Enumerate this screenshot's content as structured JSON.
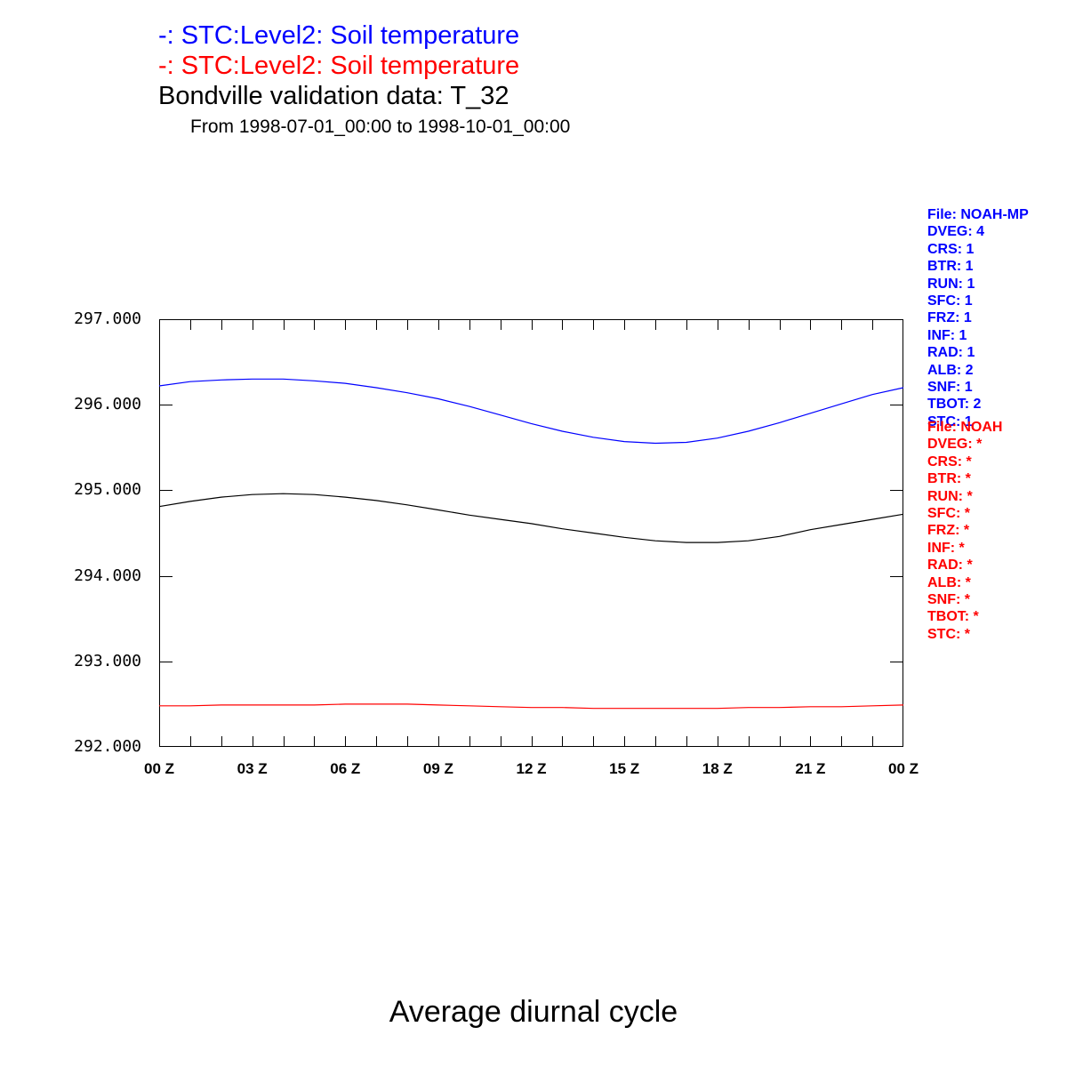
{
  "header": {
    "series_blue_title": "-: STC:Level2: Soil temperature",
    "series_red_title": "-: STC:Level2: Soil temperature",
    "main_title": "Bondville validation data: T_32",
    "subtitle": "From 1998-07-01_00:00 to 1998-10-01_00:00",
    "blue_color": "#0000ff",
    "red_color": "#ff0000"
  },
  "footer": {
    "title": "Average diurnal cycle"
  },
  "legend_noahmp": {
    "color": "#0000ff",
    "lines": [
      "File: NOAH-MP",
      "DVEG: 4",
      "CRS: 1",
      "BTR: 1",
      "RUN: 1",
      "SFC: 1",
      "FRZ: 1",
      "INF: 1",
      "RAD: 1",
      "ALB: 2",
      "SNF: 1",
      "TBOT: 2",
      "STC: 1"
    ]
  },
  "legend_noah": {
    "color": "#ff0000",
    "lines": [
      "File: NOAH",
      "DVEG: *",
      "CRS: *",
      "BTR: *",
      "RUN: *",
      "SFC: *",
      "FRZ: *",
      "INF: *",
      "RAD: *",
      "ALB: *",
      "SNF: *",
      "TBOT: *",
      "STC: *"
    ]
  },
  "chart_data": {
    "type": "line",
    "title": "Bondville validation data: T_32",
    "subtitle": "From 1998-07-01_00:00 to 1998-10-01_00:00",
    "bottom_title": "Average diurnal cycle",
    "xlabel": "",
    "ylabel": "",
    "xlim_hours": [
      0,
      24
    ],
    "ylim": [
      292,
      297
    ],
    "grid": false,
    "minor_tick_every_hours": 1,
    "xtick_hours": [
      0,
      3,
      6,
      9,
      12,
      15,
      18,
      21,
      24
    ],
    "xtick_labels": [
      "00 Z",
      "03 Z",
      "06 Z",
      "09 Z",
      "12 Z",
      "15 Z",
      "18 Z",
      "21 Z",
      "00 Z"
    ],
    "ytick_values": [
      297,
      296,
      295,
      294,
      293,
      292
    ],
    "ytick_labels": [
      "297.000",
      "296.000",
      "295.000",
      "294.000",
      "293.000",
      "292.000"
    ],
    "x_hours": [
      0,
      1,
      2,
      3,
      4,
      5,
      6,
      7,
      8,
      9,
      10,
      11,
      12,
      13,
      14,
      15,
      16,
      17,
      18,
      19,
      20,
      21,
      22,
      23,
      24
    ],
    "series": [
      {
        "name": "STC:Level2: Soil temperature (NOAH-MP)",
        "color": "#0000ff",
        "values": [
          296.22,
          296.27,
          296.29,
          296.3,
          296.3,
          296.28,
          296.25,
          296.2,
          296.14,
          296.07,
          295.98,
          295.88,
          295.78,
          295.69,
          295.62,
          295.57,
          295.55,
          295.56,
          295.61,
          295.69,
          295.79,
          295.9,
          296.01,
          296.12,
          296.2
        ]
      },
      {
        "name": "Bondville validation data: T_32 (observed)",
        "color": "#000000",
        "values": [
          294.81,
          294.87,
          294.92,
          294.95,
          294.96,
          294.95,
          294.92,
          294.88,
          294.83,
          294.77,
          294.71,
          294.66,
          294.61,
          294.55,
          294.5,
          294.45,
          294.41,
          294.39,
          294.39,
          294.41,
          294.46,
          294.54,
          294.6,
          294.66,
          294.72
        ]
      },
      {
        "name": "STC:Level2: Soil temperature (NOAH)",
        "color": "#ff0000",
        "values": [
          292.48,
          292.48,
          292.49,
          292.49,
          292.49,
          292.49,
          292.5,
          292.5,
          292.5,
          292.49,
          292.48,
          292.47,
          292.46,
          292.46,
          292.45,
          292.45,
          292.45,
          292.45,
          292.45,
          292.46,
          292.46,
          292.47,
          292.47,
          292.48,
          292.49
        ]
      }
    ]
  }
}
